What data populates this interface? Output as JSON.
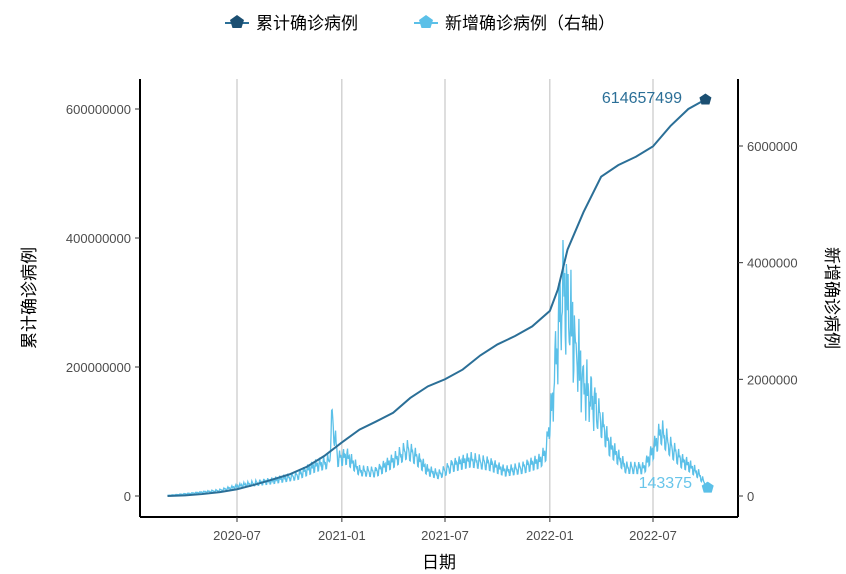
{
  "chart_data": {
    "type": "line",
    "xlabel": "日期",
    "ylabel_left": "累计确诊病例",
    "ylabel_right": "新增确诊病例",
    "x_ticks": [
      "2020-07",
      "2021-01",
      "2021-07",
      "2022-01",
      "2022-07"
    ],
    "y_left_ticks": [
      "0",
      "200000000",
      "400000000",
      "600000000"
    ],
    "y_right_ticks": [
      "0",
      "2000000",
      "4000000",
      "6000000"
    ],
    "y_left_range": [
      0,
      600000000
    ],
    "y_right_range": [
      0,
      6000000
    ],
    "grid": "vertical major",
    "legend_position": "top",
    "legend": [
      "累计确诊病例",
      "新增确诊病例（右轴）"
    ],
    "colors": {
      "cumulative": "#2b6f97",
      "cumulative_marker": "#1b4f72",
      "daily": "#5bc0e8",
      "daily_label": "#68c5ea"
    },
    "annotations": {
      "cumulative_last": "614657499",
      "daily_last": "143375"
    },
    "series": [
      {
        "name": "累计确诊病例",
        "axis": "left",
        "x": [
          "2020-03-01",
          "2020-04-01",
          "2020-05-01",
          "2020-06-01",
          "2020-07-01",
          "2020-08-01",
          "2020-09-01",
          "2020-10-01",
          "2020-11-01",
          "2020-12-01",
          "2021-01-01",
          "2021-02-01",
          "2021-03-01",
          "2021-04-01",
          "2021-05-01",
          "2021-06-01",
          "2021-07-01",
          "2021-08-01",
          "2021-09-01",
          "2021-10-01",
          "2021-11-01",
          "2021-12-01",
          "2022-01-01",
          "2022-01-15",
          "2022-02-01",
          "2022-03-01",
          "2022-04-01",
          "2022-05-01",
          "2022-06-01",
          "2022-07-01",
          "2022-08-01",
          "2022-09-01",
          "2022-10-01"
        ],
        "y": [
          0,
          1000000,
          3000000,
          6000000,
          10500000,
          17500000,
          25500000,
          33500000,
          45500000,
          62000000,
          83000000,
          103000000,
          115000000,
          129000000,
          152000000,
          170000000,
          181000000,
          196000000,
          218000000,
          235000000,
          248000000,
          263000000,
          287000000,
          320000000,
          382000000,
          440000000,
          495000000,
          513000000,
          526000000,
          542000000,
          574000000,
          600000000,
          614657499
        ]
      },
      {
        "name": "新增确诊病例",
        "axis": "right",
        "x": [
          "2020-03-01",
          "2020-04-15",
          "2020-06-01",
          "2020-07-15",
          "2020-09-01",
          "2020-10-15",
          "2020-11-15",
          "2020-12-10",
          "2020-12-15",
          "2020-12-25",
          "2021-01-10",
          "2021-02-01",
          "2021-03-01",
          "2021-04-01",
          "2021-04-25",
          "2021-05-10",
          "2021-06-01",
          "2021-06-20",
          "2021-07-15",
          "2021-08-15",
          "2021-09-15",
          "2021-10-15",
          "2021-11-15",
          "2021-12-15",
          "2021-12-25",
          "2022-01-05",
          "2022-01-15",
          "2022-01-25",
          "2022-02-15",
          "2022-03-01",
          "2022-03-20",
          "2022-04-15",
          "2022-05-15",
          "2022-06-15",
          "2022-07-01",
          "2022-07-15",
          "2022-08-01",
          "2022-08-20",
          "2022-09-01",
          "2022-09-20",
          "2022-10-05"
        ],
        "y": [
          10000,
          50000,
          100000,
          200000,
          270000,
          360000,
          530000,
          620000,
          1400000,
          650000,
          700000,
          450000,
          420000,
          620000,
          820000,
          700000,
          450000,
          380000,
          540000,
          640000,
          570000,
          440000,
          500000,
          620000,
          780000,
          1650000,
          2900000,
          3700000,
          2600000,
          2000000,
          1650000,
          900000,
          500000,
          490000,
          800000,
          1150000,
          860000,
          620000,
          550000,
          380000,
          143375
        ]
      }
    ]
  }
}
